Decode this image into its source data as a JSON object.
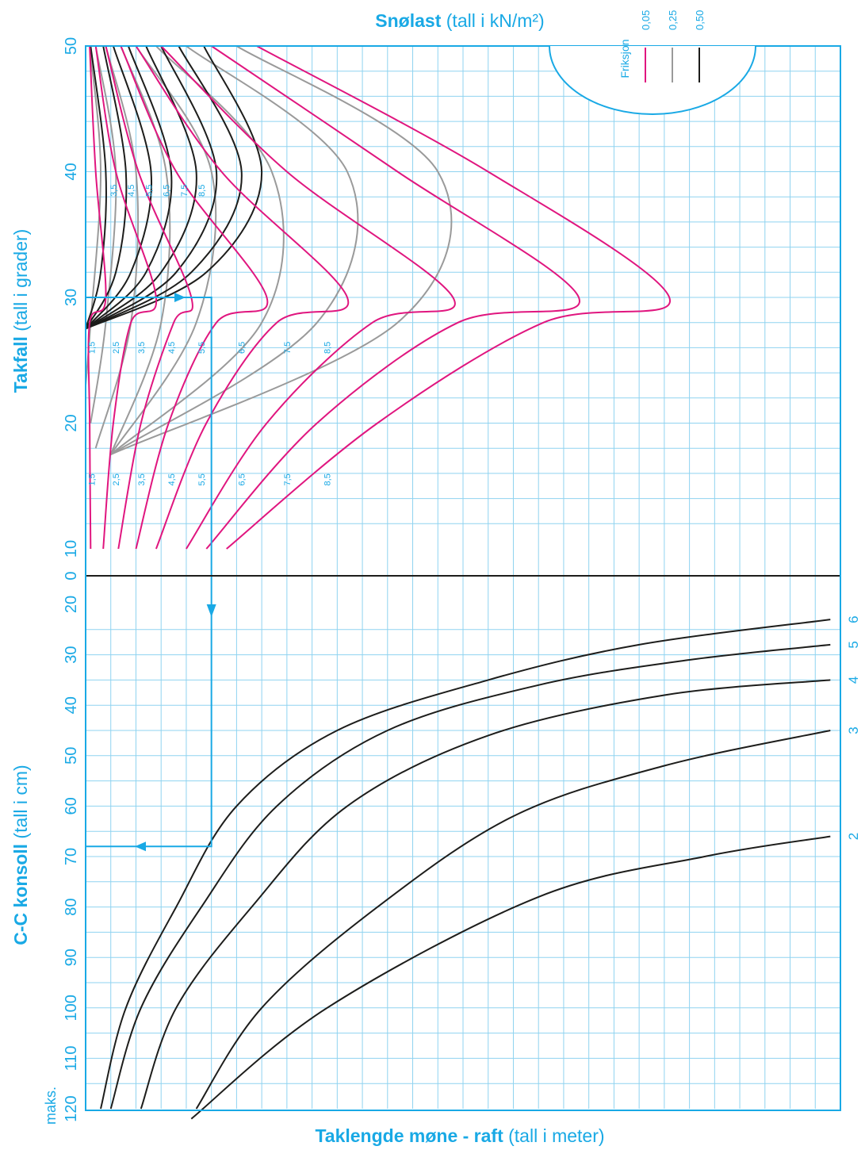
{
  "chart_data": {
    "type": "line",
    "title_bold": "Snølast",
    "title_normal": " (tall i kN/m²)",
    "xlabel_bold": "Taklengde møne - raft",
    "xlabel_normal": " (tall i meter)",
    "colors": {
      "accent": "#19a9e5",
      "grid": "#8fd3f0",
      "f005": "#e0167f",
      "f025": "#9a9a9a",
      "f050": "#1d1d1b",
      "lower": "#1d1d1b"
    },
    "legend": {
      "title": "Friksjon",
      "placement": "top-right",
      "items": [
        {
          "label": "0,05",
          "color": "#e0167f"
        },
        {
          "label": "0,25",
          "color": "#9a9a9a"
        },
        {
          "label": "0,50",
          "color": "#1d1d1b"
        }
      ]
    },
    "upper": {
      "ylabel_bold": "Takfall",
      "ylabel_normal": " (tall i grader)",
      "y_ticks": [
        "10",
        "20",
        "30",
        "40",
        "50"
      ],
      "ylim": [
        10,
        50
      ],
      "friction_005": [
        {
          "name": "1,5",
          "points": [
            [
              0.1,
              10
            ],
            [
              0.08,
              20
            ],
            [
              0.08,
              28
            ],
            [
              0.4,
              30
            ],
            [
              0.2,
              40
            ],
            [
              0.08,
              50
            ]
          ]
        },
        {
          "name": "2,5",
          "points": [
            [
              0.35,
              10
            ],
            [
              0.55,
              20
            ],
            [
              0.9,
              28
            ],
            [
              1.4,
              30
            ],
            [
              0.6,
              40
            ],
            [
              0.2,
              50
            ]
          ]
        },
        {
          "name": "3,5",
          "points": [
            [
              0.65,
              10
            ],
            [
              1.1,
              20
            ],
            [
              1.75,
              28
            ],
            [
              2.1,
              30
            ],
            [
              1.05,
              40
            ],
            [
              0.4,
              50
            ]
          ]
        },
        {
          "name": "4,5",
          "points": [
            [
              1.0,
              10
            ],
            [
              1.65,
              20
            ],
            [
              2.6,
              28
            ],
            [
              3.6,
              30
            ],
            [
              1.8,
              40
            ],
            [
              0.7,
              50
            ]
          ]
        },
        {
          "name": "5,5",
          "points": [
            [
              1.4,
              10
            ],
            [
              2.4,
              20
            ],
            [
              3.8,
              28
            ],
            [
              5.2,
              30
            ],
            [
              2.7,
              40
            ],
            [
              1.0,
              50
            ]
          ]
        },
        {
          "name": "6,5",
          "points": [
            [
              2.0,
              10
            ],
            [
              3.6,
              20
            ],
            [
              5.7,
              28
            ],
            [
              7.3,
              30
            ],
            [
              4.0,
              40
            ],
            [
              1.5,
              50
            ]
          ]
        },
        {
          "name": "7,5",
          "points": [
            [
              2.4,
              10
            ],
            [
              4.6,
              20
            ],
            [
              7.4,
              28
            ],
            [
              9.8,
              30
            ],
            [
              6.2,
              40
            ],
            [
              2.5,
              50
            ]
          ]
        },
        {
          "name": "8,5",
          "points": [
            [
              2.8,
              10
            ],
            [
              5.8,
              20
            ],
            [
              9.1,
              28
            ],
            [
              11.6,
              30
            ],
            [
              8.0,
              40
            ],
            [
              3.4,
              50
            ]
          ]
        }
      ],
      "friction_025": [
        {
          "name": "1,5",
          "points": [
            [
              0.0,
              23
            ],
            [
              0.1,
              28
            ],
            [
              0.3,
              40
            ],
            [
              0.08,
              50
            ]
          ]
        },
        {
          "name": "2,5",
          "points": [
            [
              0.1,
              20
            ],
            [
              0.4,
              28
            ],
            [
              0.6,
              40
            ],
            [
              0.2,
              50
            ]
          ]
        },
        {
          "name": "3,5",
          "points": [
            [
              0.2,
              18
            ],
            [
              0.9,
              28
            ],
            [
              1.0,
              40
            ],
            [
              0.4,
              50
            ]
          ]
        },
        {
          "name": "4,5",
          "points": [
            [
              0.5,
              17.5
            ],
            [
              1.5,
              28
            ],
            [
              1.6,
              40
            ],
            [
              0.7,
              50
            ]
          ]
        },
        {
          "name": "5,5",
          "points": [
            [
              0.5,
              17.5
            ],
            [
              2.2,
              28
            ],
            [
              2.5,
              40
            ],
            [
              1.0,
              50
            ]
          ]
        },
        {
          "name": "6,5",
          "points": [
            [
              0.5,
              17.5
            ],
            [
              3.5,
              28
            ],
            [
              3.7,
              40
            ],
            [
              1.4,
              50
            ]
          ]
        },
        {
          "name": "7,5",
          "points": [
            [
              0.5,
              17.5
            ],
            [
              4.6,
              28
            ],
            [
              5.2,
              40
            ],
            [
              2.0,
              50
            ]
          ]
        },
        {
          "name": "8,5",
          "points": [
            [
              0.5,
              17.5
            ],
            [
              6.2,
              28
            ],
            [
              7.0,
              40
            ],
            [
              3.0,
              50
            ]
          ]
        }
      ],
      "friction_050": [
        {
          "name": "1,5",
          "points": [
            [
              0.0,
              27.5
            ],
            [
              0.3,
              32
            ],
            [
              0.4,
              40
            ],
            [
              0.1,
              50
            ]
          ]
        },
        {
          "name": "2,5",
          "points": [
            [
              0.0,
              27.5
            ],
            [
              0.6,
              32
            ],
            [
              0.8,
              40
            ],
            [
              0.35,
              50
            ]
          ]
        },
        {
          "name": "3,5",
          "points": [
            [
              0.0,
              27.5
            ],
            [
              0.9,
              32
            ],
            [
              1.3,
              40
            ],
            [
              0.55,
              50
            ]
          ]
        },
        {
          "name": "4,5",
          "points": [
            [
              0.0,
              27.5
            ],
            [
              1.2,
              32
            ],
            [
              1.7,
              40
            ],
            [
              0.85,
              50
            ]
          ]
        },
        {
          "name": "5,5",
          "points": [
            [
              0.0,
              27.5
            ],
            [
              1.5,
              32
            ],
            [
              2.2,
              40
            ],
            [
              1.2,
              50
            ]
          ]
        },
        {
          "name": "6,5",
          "points": [
            [
              0.0,
              27.5
            ],
            [
              1.8,
              32
            ],
            [
              2.6,
              40
            ],
            [
              1.5,
              50
            ]
          ]
        },
        {
          "name": "7,5",
          "points": [
            [
              0.0,
              27.5
            ],
            [
              2.1,
              32
            ],
            [
              3.1,
              40
            ],
            [
              1.85,
              50
            ]
          ]
        },
        {
          "name": "8,5",
          "points": [
            [
              0.0,
              27.5
            ],
            [
              2.4,
              32
            ],
            [
              3.5,
              40
            ],
            [
              2.35,
              50
            ]
          ]
        }
      ],
      "curve_labels_lower": [
        "1,5",
        "2,5",
        "3,5",
        "4,5",
        "5,5",
        "6,5",
        "7,5",
        "8,5"
      ],
      "curve_labels_middle": [
        "1,5",
        "2,5",
        "3,5",
        "4,5",
        "5,5",
        "6,5",
        "7,5",
        "8,5"
      ],
      "curve_labels_upper": [
        "3,5",
        "4,5",
        "5,5",
        "6,5",
        "7,5",
        "8,5"
      ]
    },
    "lower": {
      "ylabel_bold": "C-C konsoll",
      "ylabel_normal": " (tall i cm)",
      "y_ticks": [
        "0",
        "20",
        "30",
        "40",
        "50",
        "60",
        "70",
        "80",
        "90",
        "100",
        "110",
        "120"
      ],
      "max_label": "maks.",
      "ylim": [
        0,
        120
      ],
      "series": [
        {
          "name": "6",
          "points": [
            [
              0.3,
              120
            ],
            [
              0.8,
              100
            ],
            [
              1.8,
              80
            ],
            [
              3.0,
              60
            ],
            [
              5.0,
              45
            ],
            [
              8.0,
              35
            ],
            [
              11.0,
              28
            ],
            [
              14.8,
              23
            ]
          ]
        },
        {
          "name": "5",
          "points": [
            [
              0.5,
              120
            ],
            [
              1.1,
              100
            ],
            [
              2.3,
              80
            ],
            [
              3.8,
              60
            ],
            [
              6.0,
              45
            ],
            [
              9.0,
              36
            ],
            [
              12.0,
              31
            ],
            [
              14.8,
              28
            ]
          ]
        },
        {
          "name": "4",
          "points": [
            [
              1.1,
              120
            ],
            [
              1.8,
              100
            ],
            [
              3.3,
              80
            ],
            [
              5.2,
              60
            ],
            [
              8.0,
              46
            ],
            [
              11.5,
              38
            ],
            [
              14.8,
              35
            ]
          ]
        },
        {
          "name": "3",
          "points": [
            [
              2.2,
              120
            ],
            [
              3.5,
              100
            ],
            [
              5.8,
              80
            ],
            [
              8.5,
              62
            ],
            [
              11.5,
              52
            ],
            [
              14.8,
              45
            ]
          ]
        },
        {
          "name": "2",
          "points": [
            [
              2.1,
              122
            ],
            [
              4.8,
              100
            ],
            [
              9.0,
              78
            ],
            [
              12.3,
              70
            ],
            [
              14.8,
              66
            ]
          ]
        }
      ]
    },
    "x_range_m": [
      0,
      15
    ],
    "example": {
      "snow_load": "5,5",
      "pitch_deg": 30,
      "length_m": 2.5,
      "cc_cm": 68
    }
  }
}
